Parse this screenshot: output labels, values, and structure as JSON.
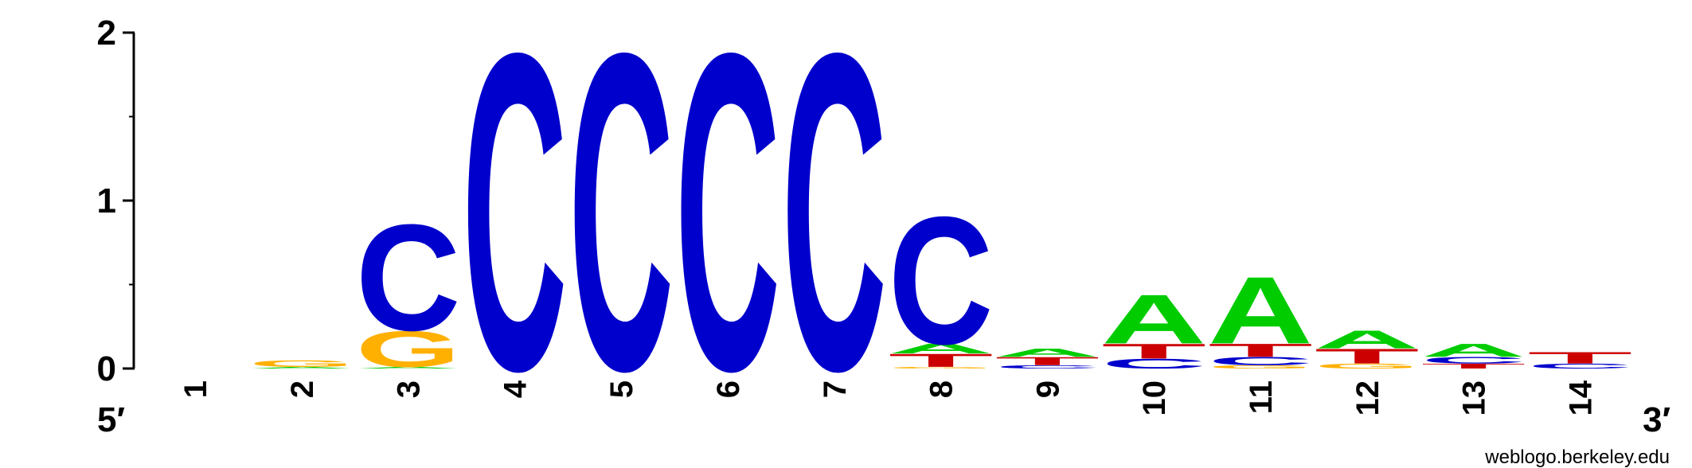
{
  "chart_data": {
    "type": "sequence-logo",
    "yaxis": {
      "min": 0,
      "max": 2,
      "ticks": [
        0,
        1,
        2
      ]
    },
    "end_labels": {
      "left": "5′",
      "right": "3′"
    },
    "credit": "weblogo.berkeley.edu",
    "colors": {
      "A": "#00cc00",
      "C": "#0000cc",
      "G": "#ffb000",
      "T": "#cc0000"
    },
    "positions": [
      {
        "label": "1",
        "stack": []
      },
      {
        "label": "2",
        "stack": [
          {
            "letter": "A",
            "height": 0.01
          },
          {
            "letter": "G",
            "height": 0.04
          }
        ]
      },
      {
        "label": "3",
        "stack": [
          {
            "letter": "A",
            "height": 0.01
          },
          {
            "letter": "G",
            "height": 0.22
          },
          {
            "letter": "C",
            "height": 0.65
          }
        ]
      },
      {
        "label": "4",
        "stack": [
          {
            "letter": "C",
            "height": 1.94
          }
        ]
      },
      {
        "label": "5",
        "stack": [
          {
            "letter": "C",
            "height": 1.94
          }
        ]
      },
      {
        "label": "6",
        "stack": [
          {
            "letter": "C",
            "height": 1.94
          }
        ]
      },
      {
        "label": "7",
        "stack": [
          {
            "letter": "C",
            "height": 1.94
          }
        ]
      },
      {
        "label": "8",
        "stack": [
          {
            "letter": "G",
            "height": 0.01
          },
          {
            "letter": "T",
            "height": 0.08
          },
          {
            "letter": "A",
            "height": 0.06
          },
          {
            "letter": "C",
            "height": 0.78
          }
        ]
      },
      {
        "label": "9",
        "stack": [
          {
            "letter": "C",
            "height": 0.02
          },
          {
            "letter": "T",
            "height": 0.05
          },
          {
            "letter": "A",
            "height": 0.05
          }
        ]
      },
      {
        "label": "10",
        "stack": [
          {
            "letter": "C",
            "height": 0.06
          },
          {
            "letter": "T",
            "height": 0.09
          },
          {
            "letter": "A",
            "height": 0.3
          }
        ]
      },
      {
        "label": "11",
        "stack": [
          {
            "letter": "G",
            "height": 0.02
          },
          {
            "letter": "C",
            "height": 0.05
          },
          {
            "letter": "T",
            "height": 0.08
          },
          {
            "letter": "A",
            "height": 0.41
          }
        ]
      },
      {
        "label": "12",
        "stack": [
          {
            "letter": "G",
            "height": 0.03
          },
          {
            "letter": "T",
            "height": 0.09
          },
          {
            "letter": "A",
            "height": 0.11
          }
        ]
      },
      {
        "label": "13",
        "stack": [
          {
            "letter": "T",
            "height": 0.03
          },
          {
            "letter": "C",
            "height": 0.04
          },
          {
            "letter": "A",
            "height": 0.08
          }
        ]
      },
      {
        "label": "14",
        "stack": [
          {
            "letter": "C",
            "height": 0.03
          },
          {
            "letter": "T",
            "height": 0.07
          }
        ]
      }
    ]
  }
}
